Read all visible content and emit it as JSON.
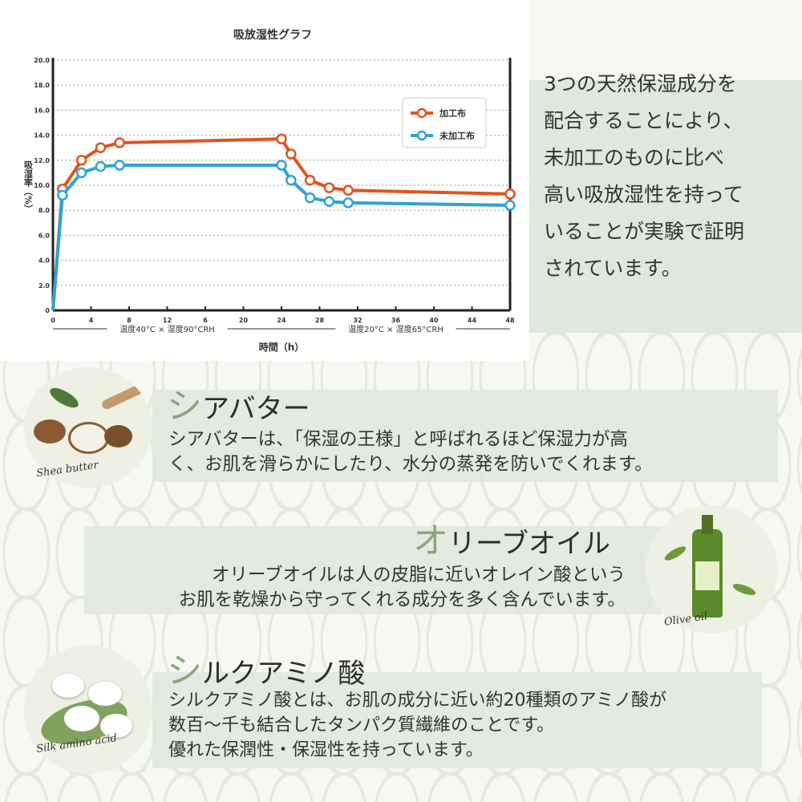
{
  "chart_data": {
    "type": "line",
    "title": "吸放湿性グラフ",
    "ylabel": "吸湿率（%）",
    "xlabel": "時間（h）",
    "ylim": [
      0,
      20
    ],
    "xlim": [
      0,
      48
    ],
    "y_ticks": [
      "0",
      "2.0",
      "4.0",
      "6.0",
      "8.0",
      "10.0",
      "12.0",
      "14.0",
      "16.0",
      "18.0",
      "20.0"
    ],
    "x_ticks": [
      "0",
      "4",
      "8",
      "12",
      "6",
      "20",
      "24",
      "28",
      "32",
      "36",
      "40",
      "44",
      "48"
    ],
    "grid": "horizontal dotted",
    "legend": "top-right",
    "annotations": [
      "温度40°C × 湿度90°CRH",
      "温度20°C × 湿度65°CRH"
    ],
    "x": [
      0,
      1,
      3,
      5,
      7,
      24,
      25,
      27,
      29,
      31,
      48
    ],
    "series": [
      {
        "name": "加工布",
        "color": "#e0531f",
        "values": [
          0,
          9.7,
          12.0,
          13.0,
          13.4,
          13.7,
          12.5,
          10.4,
          9.8,
          9.6,
          9.3
        ]
      },
      {
        "name": "未加工布",
        "color": "#2ea3d6",
        "values": [
          0,
          9.2,
          11.0,
          11.5,
          11.6,
          11.6,
          10.4,
          9.0,
          8.7,
          8.6,
          8.4
        ]
      }
    ]
  },
  "intro": [
    "3つの天然保湿成分を",
    "配合することにより、",
    "未加工のものに比べ",
    "高い吸放湿性を持って",
    "いることが実験で証明",
    "されています。"
  ],
  "sections": [
    {
      "title_first": "シ",
      "title_rest": "アバター",
      "caption": "Shea butter",
      "body": [
        "シアバターは、「保湿の王様」と呼ばれるほど保湿力が高",
        "く、お肌を滑らかにしたり、水分の蒸発を防いでくれます。"
      ]
    },
    {
      "title_first": "オ",
      "title_rest": "リーブオイル",
      "caption": "Olive oil",
      "body": [
        "オリーブオイルは人の皮脂に近いオレイン酸という",
        "お肌を乾燥から守ってくれる成分を多く含んでいます。"
      ]
    },
    {
      "title_first": "シ",
      "title_rest": "ルクアミノ酸",
      "caption": "Silk amino acid",
      "body": [
        "シルクアミノ酸とは、お肌の成分に近い約20種類のアミノ酸が",
        "数百～千も結合したタンパク質繊維のことです。",
        "優れた保潤性・保湿性を持っています。"
      ]
    }
  ]
}
